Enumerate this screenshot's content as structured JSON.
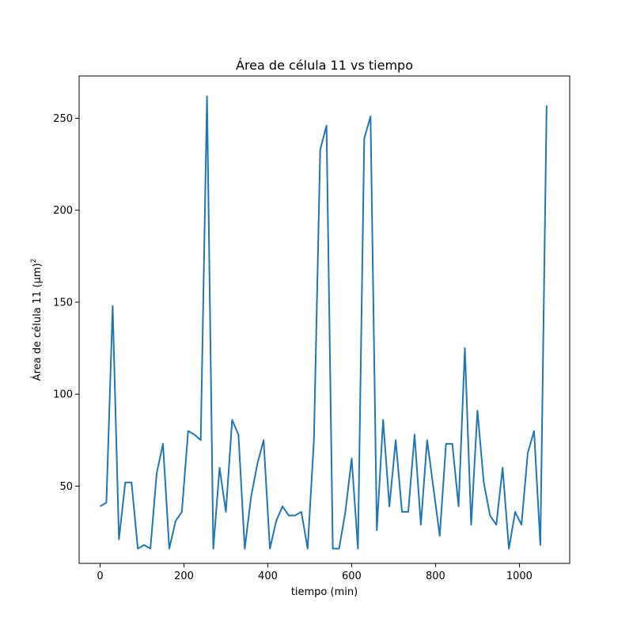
{
  "chart_data": {
    "type": "line",
    "title": "Área de célula 11 vs tiempo",
    "xlabel": "tiempo (min)",
    "ylabel": "Área de célula 11 (μm)",
    "ylabel_superscript": "2",
    "xlim": [
      -50,
      1120
    ],
    "ylim": [
      8,
      273
    ],
    "xticks": [
      0,
      200,
      400,
      600,
      800,
      1000
    ],
    "yticks": [
      50,
      100,
      150,
      200,
      250
    ],
    "grid": false,
    "legend": "none",
    "line_color": "#1f77b4",
    "series": [
      {
        "x": [
          0,
          15,
          30,
          45,
          60,
          75,
          90,
          105,
          120,
          135,
          150,
          165,
          180,
          195,
          210,
          225,
          240,
          255,
          270,
          285,
          300,
          315,
          330,
          345,
          360,
          375,
          390,
          405,
          420,
          435,
          450,
          465,
          480,
          495,
          510,
          525,
          540,
          555,
          570,
          585,
          600,
          615,
          630,
          645,
          660,
          675,
          690,
          705,
          720,
          735,
          750,
          765,
          780,
          795,
          810,
          825,
          840,
          855,
          870,
          885,
          900,
          915,
          930,
          945,
          960,
          975,
          990,
          1005,
          1020,
          1035,
          1050,
          1065
        ],
        "y": [
          39,
          41,
          148,
          21,
          52,
          52,
          16,
          18,
          16,
          57,
          73,
          16,
          31,
          36,
          80,
          78,
          75,
          262,
          16,
          60,
          36,
          86,
          78,
          16,
          44,
          62,
          75,
          16,
          31,
          39,
          34,
          34,
          36,
          16,
          75,
          233,
          246,
          16,
          16,
          36,
          65,
          16,
          239,
          251,
          26,
          86,
          39,
          75,
          36,
          36,
          78,
          29,
          75,
          49,
          23,
          73,
          73,
          39,
          125,
          29,
          91,
          52,
          34,
          29,
          60,
          16,
          36,
          29,
          68,
          80,
          18,
          257
        ]
      }
    ]
  }
}
